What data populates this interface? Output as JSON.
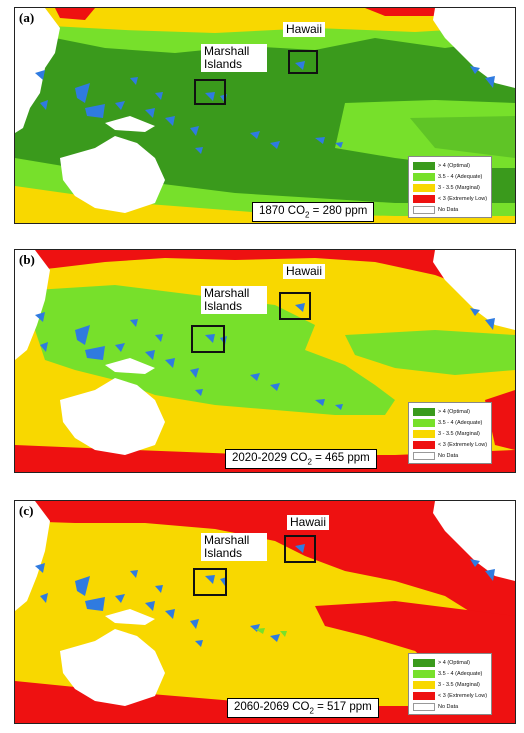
{
  "legend": [
    {
      "label": "> 4 (Optimal)",
      "color": "#3a9a1c"
    },
    {
      "label": "3.5 - 4 (Adequate)",
      "color": "#77e02b"
    },
    {
      "label": "3 - 3.5 (Marginal)",
      "color": "#f8d800"
    },
    {
      "label": "< 3 (Extremely Low)",
      "color": "#ee1111"
    },
    {
      "label": "No Data",
      "color": "#ffffff"
    }
  ],
  "markers": {
    "hawaii": "Hawaii",
    "marshall": "Marshall Islands"
  },
  "colors": {
    "land": "#ffffff",
    "island": "#2f7be0",
    "border": "#222222"
  },
  "panels": [
    {
      "label": "(a)",
      "co2_prefix": "1870 CO",
      "co2_sub": "2",
      "co2_suffix": " = 280 ppm",
      "background": "#3a9a1c"
    },
    {
      "label": "(b)",
      "co2_prefix": "2020-2029 CO",
      "co2_sub": "2",
      "co2_suffix": " = 465 ppm",
      "background": "#f8d800"
    },
    {
      "label": "(c)",
      "co2_prefix": "2060-2069 CO",
      "co2_sub": "2",
      "co2_suffix": " = 517 ppm",
      "background": "#f8d800"
    }
  ]
}
